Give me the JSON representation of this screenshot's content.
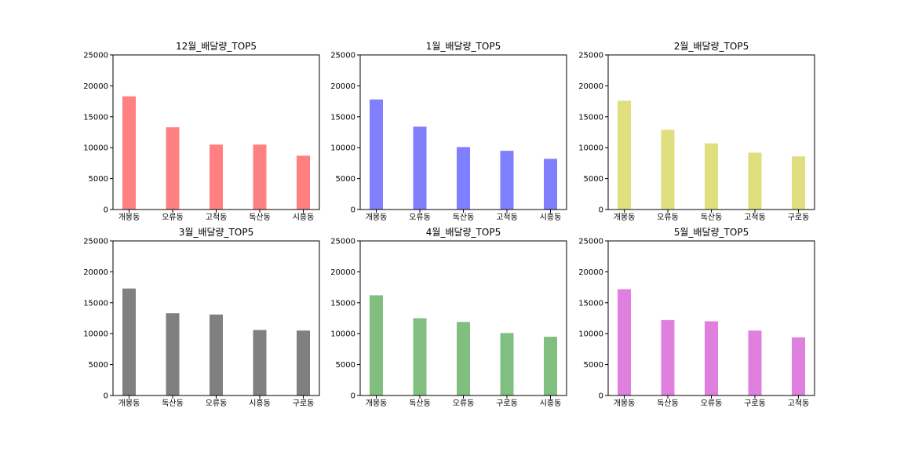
{
  "chart_data": [
    {
      "type": "bar",
      "title": "12월_배달량_TOP5",
      "categories": [
        "개봉동",
        "오류동",
        "고척동",
        "독산동",
        "시흥동"
      ],
      "values": [
        18300,
        13300,
        10500,
        10500,
        8700
      ],
      "color": "#ff8080",
      "ylim": [
        0,
        25000
      ],
      "yticks": [
        0,
        5000,
        10000,
        15000,
        20000,
        25000
      ],
      "ytick_labels": [
        "0",
        "5000",
        "10000",
        "15000",
        "20000",
        "25000"
      ]
    },
    {
      "type": "bar",
      "title": "1월_배달량_TOP5",
      "categories": [
        "개봉동",
        "오류동",
        "독산동",
        "고척동",
        "시흥동"
      ],
      "values": [
        17800,
        13400,
        10100,
        9500,
        8200
      ],
      "color": "#8080ff",
      "ylim": [
        0,
        25000
      ],
      "yticks": [
        0,
        5000,
        10000,
        15000,
        20000,
        25000
      ],
      "ytick_labels": [
        "0",
        "5000",
        "10000",
        "15000",
        "20000",
        "25000"
      ]
    },
    {
      "type": "bar",
      "title": "2월_배달량_TOP5",
      "categories": [
        "개봉동",
        "오류동",
        "독산동",
        "고척동",
        "구로동"
      ],
      "values": [
        17600,
        12900,
        10700,
        9200,
        8600
      ],
      "color": "#dfdf80",
      "ylim": [
        0,
        25000
      ],
      "yticks": [
        0,
        5000,
        10000,
        15000,
        20000,
        25000
      ],
      "ytick_labels": [
        "0",
        "5000",
        "10000",
        "15000",
        "20000",
        "25000"
      ]
    },
    {
      "type": "bar",
      "title": "3월_배달량_TOP5",
      "categories": [
        "개봉동",
        "독산동",
        "오류동",
        "시흥동",
        "구로동"
      ],
      "values": [
        17300,
        13300,
        13100,
        10600,
        10500
      ],
      "color": "#808080",
      "ylim": [
        0,
        25000
      ],
      "yticks": [
        0,
        5000,
        10000,
        15000,
        20000,
        25000
      ],
      "ytick_labels": [
        "0",
        "5000",
        "10000",
        "15000",
        "20000",
        "25000"
      ]
    },
    {
      "type": "bar",
      "title": "4월_배달량_TOP5",
      "categories": [
        "개봉동",
        "독산동",
        "오류동",
        "구로동",
        "시흥동"
      ],
      "values": [
        16200,
        12500,
        11900,
        10100,
        9500
      ],
      "color": "#80bf80",
      "ylim": [
        0,
        25000
      ],
      "yticks": [
        0,
        5000,
        10000,
        15000,
        20000,
        25000
      ],
      "ytick_labels": [
        "0",
        "5000",
        "10000",
        "15000",
        "20000",
        "25000"
      ]
    },
    {
      "type": "bar",
      "title": "5월_배달량_TOP5",
      "categories": [
        "개봉동",
        "독산동",
        "오류동",
        "구로동",
        "고척동"
      ],
      "values": [
        17200,
        12200,
        12000,
        10500,
        9400
      ],
      "color": "#df80df",
      "ylim": [
        0,
        25000
      ],
      "yticks": [
        0,
        5000,
        10000,
        15000,
        20000,
        25000
      ],
      "ytick_labels": [
        "0",
        "5000",
        "10000",
        "15000",
        "20000",
        "25000"
      ]
    }
  ]
}
